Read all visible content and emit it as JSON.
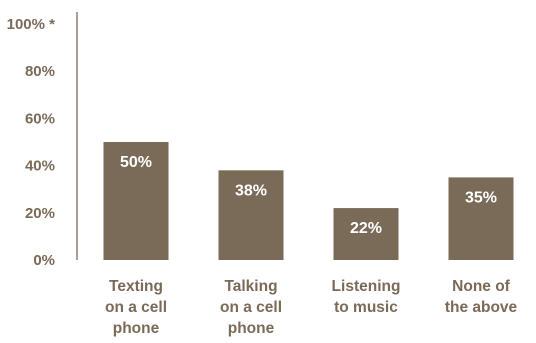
{
  "chart_data": {
    "type": "bar",
    "categories": [
      [
        "Texting",
        "on a cell",
        "phone"
      ],
      [
        "Talking",
        "on a cell",
        "phone"
      ],
      [
        "Listening",
        "to music"
      ],
      [
        "None of",
        "the above"
      ]
    ],
    "values": [
      50,
      38,
      22,
      35
    ],
    "value_labels": [
      "50%",
      "38%",
      "22%",
      "35%"
    ],
    "y_ticks": [
      0,
      20,
      40,
      60,
      80,
      100
    ],
    "y_tick_labels": [
      "0%",
      "20%",
      "40%",
      "60%",
      "80%",
      "100% *"
    ],
    "ylim": [
      0,
      100
    ],
    "title": "",
    "xlabel": "",
    "ylabel": "",
    "grid": false,
    "colors": {
      "bar": "#7a6a58",
      "axis": "#7a6a58",
      "text": "#7a6a58",
      "bar_label": "#ffffff"
    }
  }
}
